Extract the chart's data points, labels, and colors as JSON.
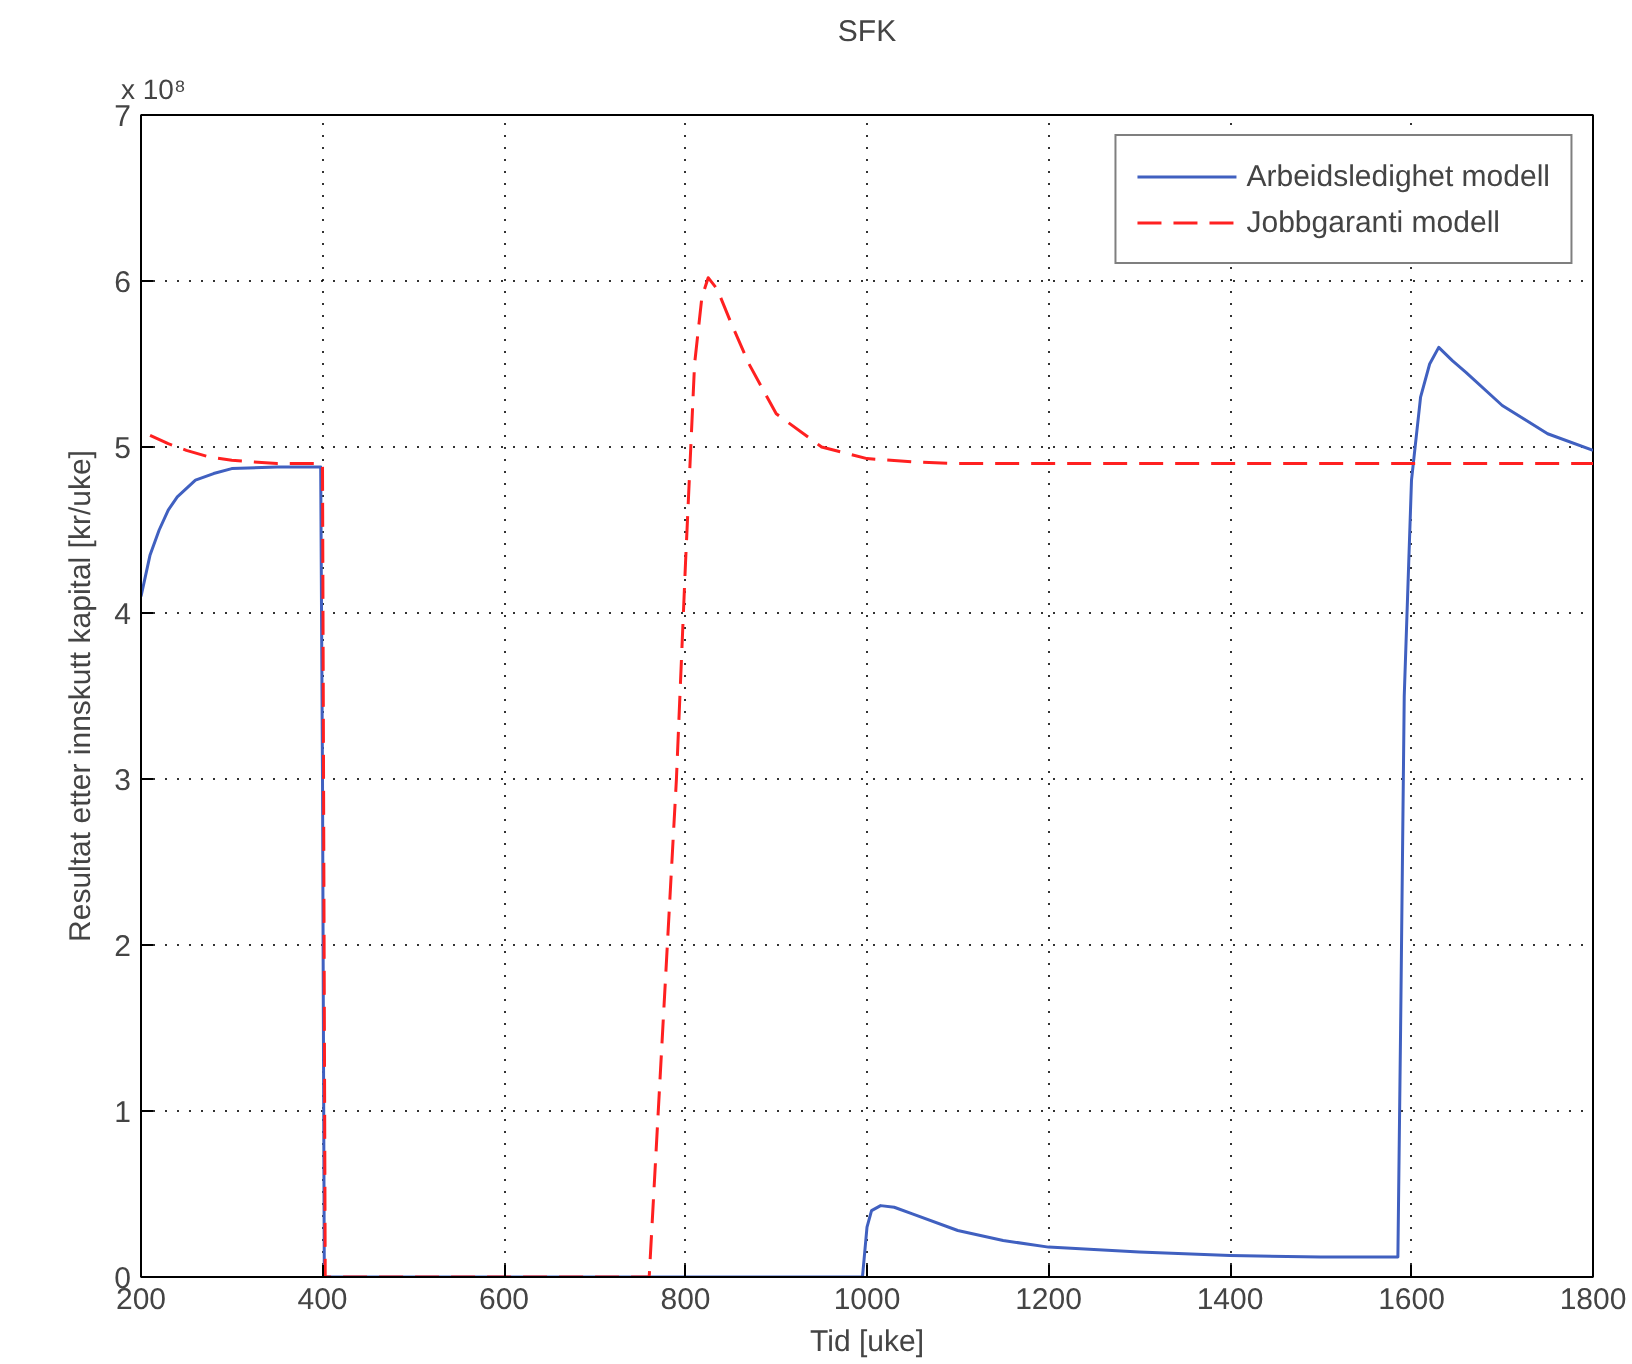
{
  "chart_data": {
    "type": "line",
    "title": "SFK",
    "xlabel": "Tid [uke]",
    "ylabel": "Resultat etter innskutt kapital [kr/uke]",
    "annotations": [
      "x 10⁸"
    ],
    "xlim": [
      200,
      1800
    ],
    "xticks": [
      200,
      400,
      600,
      800,
      1000,
      1200,
      1400,
      1600,
      1800
    ],
    "ylim": [
      0,
      7
    ],
    "yticks": [
      0,
      1,
      2,
      3,
      4,
      5,
      6,
      7
    ],
    "grid": true,
    "legend": "top right",
    "marker": "none",
    "series": [
      {
        "name": "Arbeidsledighet modell",
        "color": "#4060c0",
        "line_style": "solid",
        "x": [
          200,
          210,
          220,
          230,
          240,
          260,
          280,
          300,
          350,
          398,
          400,
          402,
          700,
          995,
          1000,
          1005,
          1015,
          1030,
          1050,
          1100,
          1150,
          1200,
          1300,
          1400,
          1500,
          1585,
          1588,
          1592,
          1600,
          1610,
          1620,
          1630,
          1645,
          1660,
          1700,
          1750,
          1800
        ],
        "values": [
          4.1,
          4.35,
          4.5,
          4.62,
          4.7,
          4.8,
          4.84,
          4.87,
          4.88,
          4.88,
          3.0,
          0,
          0,
          0,
          0.3,
          0.4,
          0.43,
          0.42,
          0.38,
          0.28,
          0.22,
          0.18,
          0.15,
          0.13,
          0.12,
          0.12,
          1.5,
          3.5,
          4.8,
          5.3,
          5.5,
          5.6,
          5.52,
          5.45,
          5.25,
          5.08,
          4.98
        ]
      },
      {
        "name": "Jobbgaranti modell",
        "color": "#ff2020",
        "line_style": "dashed",
        "x": [
          210,
          230,
          250,
          275,
          300,
          350,
          400,
          403,
          600,
          760,
          775,
          790,
          800,
          810,
          818,
          825,
          835,
          850,
          870,
          900,
          950,
          1000,
          1050,
          1100,
          1800
        ],
        "values": [
          5.07,
          5.02,
          4.98,
          4.94,
          4.92,
          4.9,
          4.9,
          0,
          0,
          0,
          1.5,
          3.0,
          4.3,
          5.5,
          5.9,
          6.02,
          5.95,
          5.75,
          5.5,
          5.2,
          5.0,
          4.93,
          4.91,
          4.9,
          4.9
        ]
      }
    ]
  }
}
